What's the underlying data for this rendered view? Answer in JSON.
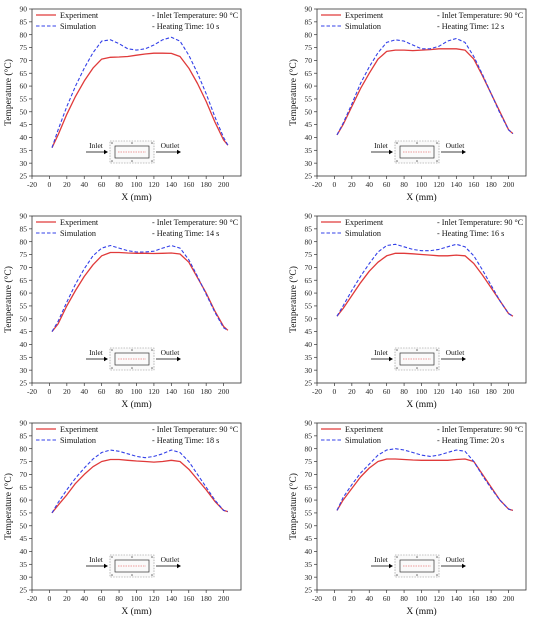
{
  "legend": {
    "experiment": "Experiment",
    "simulation": "Simulation"
  },
  "colors": {
    "experiment": "#e03a3a",
    "simulation": "#3340e8",
    "axis": "#333333"
  },
  "inset": {
    "inlet": "Inlet",
    "outlet": "Outlet"
  },
  "chart_data": [
    {
      "type": "line",
      "xlabel": "X (mm)",
      "ylabel": "Temperature (°C)",
      "xlim": [
        -20,
        220
      ],
      "ylim": [
        25,
        90
      ],
      "xticks": [
        "-20",
        "0",
        "20",
        "40",
        "60",
        "80",
        "100",
        "120",
        "140",
        "160",
        "180",
        "200"
      ],
      "yticks": [
        "25",
        "30",
        "35",
        "40",
        "45",
        "50",
        "55",
        "60",
        "65",
        "70",
        "75",
        "80",
        "85",
        "90"
      ],
      "notes": [
        "- Inlet Temperature: 90 °C",
        "- Heating Time: 10 s"
      ],
      "grid": false,
      "legend_position": "top-left",
      "series": [
        {
          "name": "Experiment",
          "x": [
            3,
            10,
            20,
            30,
            40,
            50,
            60,
            70,
            80,
            90,
            100,
            110,
            120,
            130,
            140,
            150,
            160,
            170,
            180,
            190,
            200,
            205
          ],
          "y": [
            36,
            41,
            49,
            56,
            62,
            67,
            70.5,
            71.2,
            71.3,
            71.5,
            72,
            72.5,
            72.8,
            72.8,
            72.7,
            71.5,
            67,
            61,
            54,
            46,
            39,
            37
          ]
        },
        {
          "name": "Simulation",
          "x": [
            3,
            10,
            20,
            30,
            40,
            50,
            60,
            70,
            80,
            90,
            100,
            110,
            120,
            130,
            140,
            150,
            160,
            170,
            180,
            190,
            200,
            205
          ],
          "y": [
            36,
            43,
            52,
            60,
            67,
            73,
            77.5,
            78,
            76.5,
            74.5,
            74,
            74.5,
            76,
            78,
            79,
            77.5,
            72,
            65,
            57,
            48,
            40,
            37
          ]
        }
      ]
    },
    {
      "type": "line",
      "xlabel": "X (mm)",
      "ylabel": "Temperature (°C)",
      "xlim": [
        -20,
        220
      ],
      "ylim": [
        25,
        90
      ],
      "xticks": [
        "-20",
        "0",
        "20",
        "40",
        "60",
        "80",
        "100",
        "120",
        "140",
        "160",
        "180",
        "200"
      ],
      "yticks": [
        "25",
        "30",
        "35",
        "40",
        "45",
        "50",
        "55",
        "60",
        "65",
        "70",
        "75",
        "80",
        "85",
        "90"
      ],
      "notes": [
        "- Inlet Temperature: 90 °C",
        "- Heating Time: 12 s"
      ],
      "grid": false,
      "legend_position": "top-left",
      "series": [
        {
          "name": "Experiment",
          "x": [
            3,
            10,
            20,
            30,
            40,
            50,
            60,
            70,
            80,
            90,
            100,
            110,
            120,
            130,
            140,
            150,
            160,
            170,
            180,
            190,
            200,
            205
          ],
          "y": [
            41,
            45,
            52,
            59,
            65,
            70.5,
            73.5,
            74,
            74,
            73.8,
            74,
            74.2,
            74.5,
            74.5,
            74.5,
            74,
            70.5,
            64,
            57,
            50,
            43,
            41.5
          ]
        },
        {
          "name": "Simulation",
          "x": [
            3,
            10,
            20,
            30,
            40,
            50,
            60,
            70,
            80,
            90,
            100,
            110,
            120,
            130,
            140,
            150,
            160,
            170,
            180,
            190,
            200,
            205
          ],
          "y": [
            41,
            45.5,
            53,
            61,
            67.5,
            73,
            77,
            78,
            77.5,
            76,
            74.5,
            74.5,
            75.5,
            77.5,
            78.5,
            77,
            71.5,
            64.5,
            57,
            49.5,
            43,
            41.5
          ]
        }
      ]
    },
    {
      "type": "line",
      "xlabel": "X (mm)",
      "ylabel": "Temperature (°C)",
      "xlim": [
        -20,
        220
      ],
      "ylim": [
        25,
        90
      ],
      "xticks": [
        "-20",
        "0",
        "20",
        "40",
        "60",
        "80",
        "100",
        "120",
        "140",
        "160",
        "180",
        "200"
      ],
      "yticks": [
        "25",
        "30",
        "35",
        "40",
        "45",
        "50",
        "55",
        "60",
        "65",
        "70",
        "75",
        "80",
        "85",
        "90"
      ],
      "notes": [
        "- Inlet Temperature: 90 °C",
        "- Heating Time: 14 s"
      ],
      "grid": false,
      "legend_position": "top-left",
      "series": [
        {
          "name": "Experiment",
          "x": [
            3,
            10,
            20,
            30,
            40,
            50,
            60,
            70,
            80,
            90,
            100,
            110,
            120,
            130,
            140,
            150,
            160,
            170,
            180,
            190,
            200,
            205
          ],
          "y": [
            45,
            48,
            55,
            61,
            66.5,
            71,
            74.5,
            75.8,
            75.8,
            75.6,
            75.5,
            75.5,
            75.4,
            75.5,
            75.6,
            75.2,
            72,
            66,
            60,
            53,
            47,
            45.5
          ]
        },
        {
          "name": "Simulation",
          "x": [
            3,
            10,
            20,
            30,
            40,
            50,
            60,
            70,
            80,
            90,
            100,
            110,
            120,
            130,
            140,
            150,
            160,
            170,
            180,
            190,
            200,
            205
          ],
          "y": [
            45,
            49,
            56.5,
            63.5,
            69.5,
            74.5,
            77.5,
            78.5,
            77.5,
            76.5,
            76,
            76,
            76.3,
            77.5,
            78.5,
            77.5,
            73,
            66.5,
            59.5,
            52.5,
            46.5,
            45.5
          ]
        }
      ]
    },
    {
      "type": "line",
      "xlabel": "X (mm)",
      "ylabel": "Temperature (°C)",
      "xlim": [
        -20,
        220
      ],
      "ylim": [
        25,
        90
      ],
      "xticks": [
        "-20",
        "0",
        "20",
        "40",
        "60",
        "80",
        "100",
        "120",
        "140",
        "160",
        "180",
        "200"
      ],
      "yticks": [
        "25",
        "30",
        "35",
        "40",
        "45",
        "50",
        "55",
        "60",
        "65",
        "70",
        "75",
        "80",
        "85",
        "90"
      ],
      "notes": [
        "- Inlet Temperature: 90 °C",
        "- Heating Time: 16 s"
      ],
      "grid": false,
      "legend_position": "top-left",
      "series": [
        {
          "name": "Experiment",
          "x": [
            3,
            10,
            20,
            30,
            40,
            50,
            60,
            70,
            80,
            90,
            100,
            110,
            120,
            130,
            140,
            150,
            160,
            170,
            180,
            190,
            200,
            205
          ],
          "y": [
            51,
            54,
            59,
            64,
            68.5,
            72,
            74.5,
            75.5,
            75.5,
            75.3,
            75,
            74.8,
            74.5,
            74.5,
            74.8,
            74.5,
            71.5,
            67,
            62,
            57,
            52,
            51
          ]
        },
        {
          "name": "Simulation",
          "x": [
            3,
            10,
            20,
            30,
            40,
            50,
            60,
            70,
            80,
            90,
            100,
            110,
            120,
            130,
            140,
            150,
            160,
            170,
            180,
            190,
            200,
            205
          ],
          "y": [
            51,
            55,
            61,
            66.5,
            71.5,
            76,
            78.5,
            79,
            78,
            77,
            76.5,
            76.5,
            77,
            78,
            79,
            78,
            74.5,
            69,
            63,
            57,
            52,
            51
          ]
        }
      ]
    },
    {
      "type": "line",
      "xlabel": "X (mm)",
      "ylabel": "Temperature (°C)",
      "xlim": [
        -20,
        220
      ],
      "ylim": [
        25,
        90
      ],
      "xticks": [
        "-20",
        "0",
        "20",
        "40",
        "60",
        "80",
        "100",
        "120",
        "140",
        "160",
        "180",
        "200"
      ],
      "yticks": [
        "25",
        "30",
        "35",
        "40",
        "45",
        "50",
        "55",
        "60",
        "65",
        "70",
        "75",
        "80",
        "85",
        "90"
      ],
      "notes": [
        "- Inlet Temperature: 90 °C",
        "- Heating Time: 18 s"
      ],
      "grid": false,
      "legend_position": "top-left",
      "series": [
        {
          "name": "Experiment",
          "x": [
            3,
            10,
            20,
            30,
            40,
            50,
            60,
            70,
            80,
            90,
            100,
            110,
            120,
            130,
            140,
            150,
            160,
            170,
            180,
            190,
            200,
            205
          ],
          "y": [
            55,
            58,
            62,
            66.5,
            70,
            73,
            75,
            75.8,
            75.8,
            75.5,
            75.2,
            75,
            74.8,
            75,
            75.5,
            75,
            72,
            68,
            64,
            59.5,
            56,
            55.5
          ]
        },
        {
          "name": "Simulation",
          "x": [
            3,
            10,
            20,
            30,
            40,
            50,
            60,
            70,
            80,
            90,
            100,
            110,
            120,
            130,
            140,
            150,
            160,
            170,
            180,
            190,
            200,
            205
          ],
          "y": [
            55,
            59,
            64,
            68.5,
            72.5,
            76,
            78.5,
            79.5,
            79,
            78,
            77,
            76.5,
            77,
            78,
            79.5,
            78.5,
            75,
            70,
            65,
            60,
            56,
            55.5
          ]
        }
      ]
    },
    {
      "type": "line",
      "xlabel": "X (mm)",
      "ylabel": "Temperature (°C)",
      "xlim": [
        -20,
        220
      ],
      "ylim": [
        25,
        90
      ],
      "xticks": [
        "-20",
        "0",
        "20",
        "40",
        "60",
        "80",
        "100",
        "120",
        "140",
        "160",
        "180",
        "200"
      ],
      "yticks": [
        "25",
        "30",
        "35",
        "40",
        "45",
        "50",
        "55",
        "60",
        "65",
        "70",
        "75",
        "80",
        "85",
        "90"
      ],
      "notes": [
        "- Inlet Temperature: 90 °C",
        "- Heating Time: 20 s"
      ],
      "grid": false,
      "legend_position": "top-left",
      "series": [
        {
          "name": "Experiment",
          "x": [
            3,
            10,
            20,
            30,
            40,
            50,
            60,
            70,
            80,
            90,
            100,
            110,
            120,
            130,
            140,
            150,
            160,
            170,
            180,
            190,
            200,
            205
          ],
          "y": [
            56,
            60,
            64.5,
            69,
            72.5,
            75,
            76,
            76,
            75.8,
            75.6,
            75.5,
            75.5,
            75.5,
            75.5,
            75.8,
            76,
            75,
            70,
            65,
            60,
            56.5,
            56
          ]
        },
        {
          "name": "Simulation",
          "x": [
            3,
            10,
            20,
            30,
            40,
            50,
            60,
            70,
            80,
            90,
            100,
            110,
            120,
            130,
            140,
            150,
            160,
            170,
            180,
            190,
            200,
            205
          ],
          "y": [
            56,
            61,
            66,
            70.5,
            74,
            77.5,
            79.5,
            80,
            79.5,
            78.5,
            77.5,
            77,
            77.5,
            78.5,
            79.5,
            79,
            75,
            69.5,
            64.5,
            60,
            56.5,
            56
          ]
        }
      ]
    }
  ]
}
